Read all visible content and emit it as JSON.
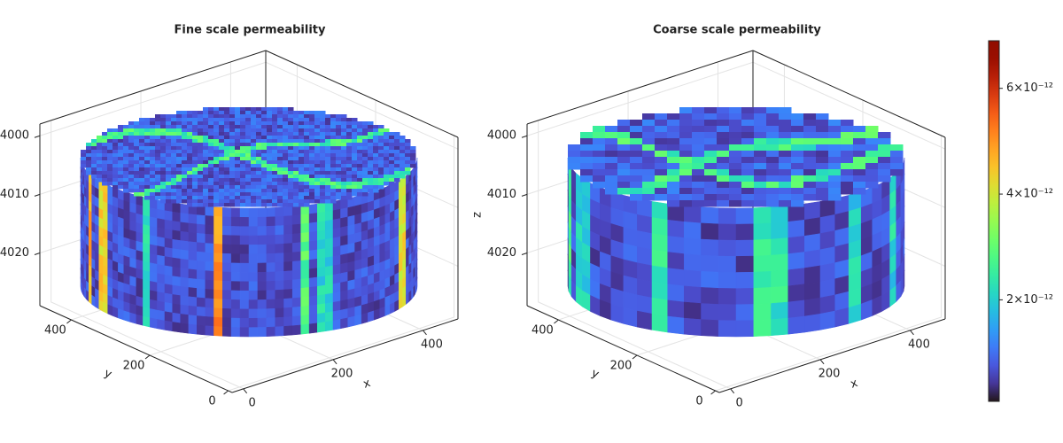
{
  "panels": [
    {
      "title": "Fine scale permeability",
      "x_label": "x",
      "y_label": "y",
      "xlim": [
        -25,
        478
      ],
      "ylim": [
        -10,
        480
      ],
      "zlim": [
        3998,
        4029
      ],
      "xticks": [
        0,
        200,
        400
      ],
      "yticks": [
        0,
        200,
        400
      ],
      "zticks": [
        4000,
        4010,
        4020
      ]
    },
    {
      "title": "Coarse scale permeability",
      "x_label": "x",
      "y_label": "y",
      "z_label": "z",
      "xlim": [
        -25,
        478
      ],
      "ylim": [
        -10,
        480
      ],
      "zlim": [
        3998,
        4029
      ],
      "xticks": [
        0,
        200,
        400
      ],
      "yticks": [
        0,
        200,
        400
      ],
      "zticks": [
        4000,
        4010,
        4020
      ]
    }
  ],
  "colorbar": {
    "colormap": "turbo",
    "limits": [
      8e-14,
      6.9e-12
    ],
    "ticks": [
      {
        "value": 2e-12,
        "label": "2×10⁻¹²"
      },
      {
        "value": 4e-12,
        "label": "4×10⁻¹²"
      },
      {
        "value": 6e-12,
        "label": "6×10⁻¹²"
      }
    ]
  }
}
